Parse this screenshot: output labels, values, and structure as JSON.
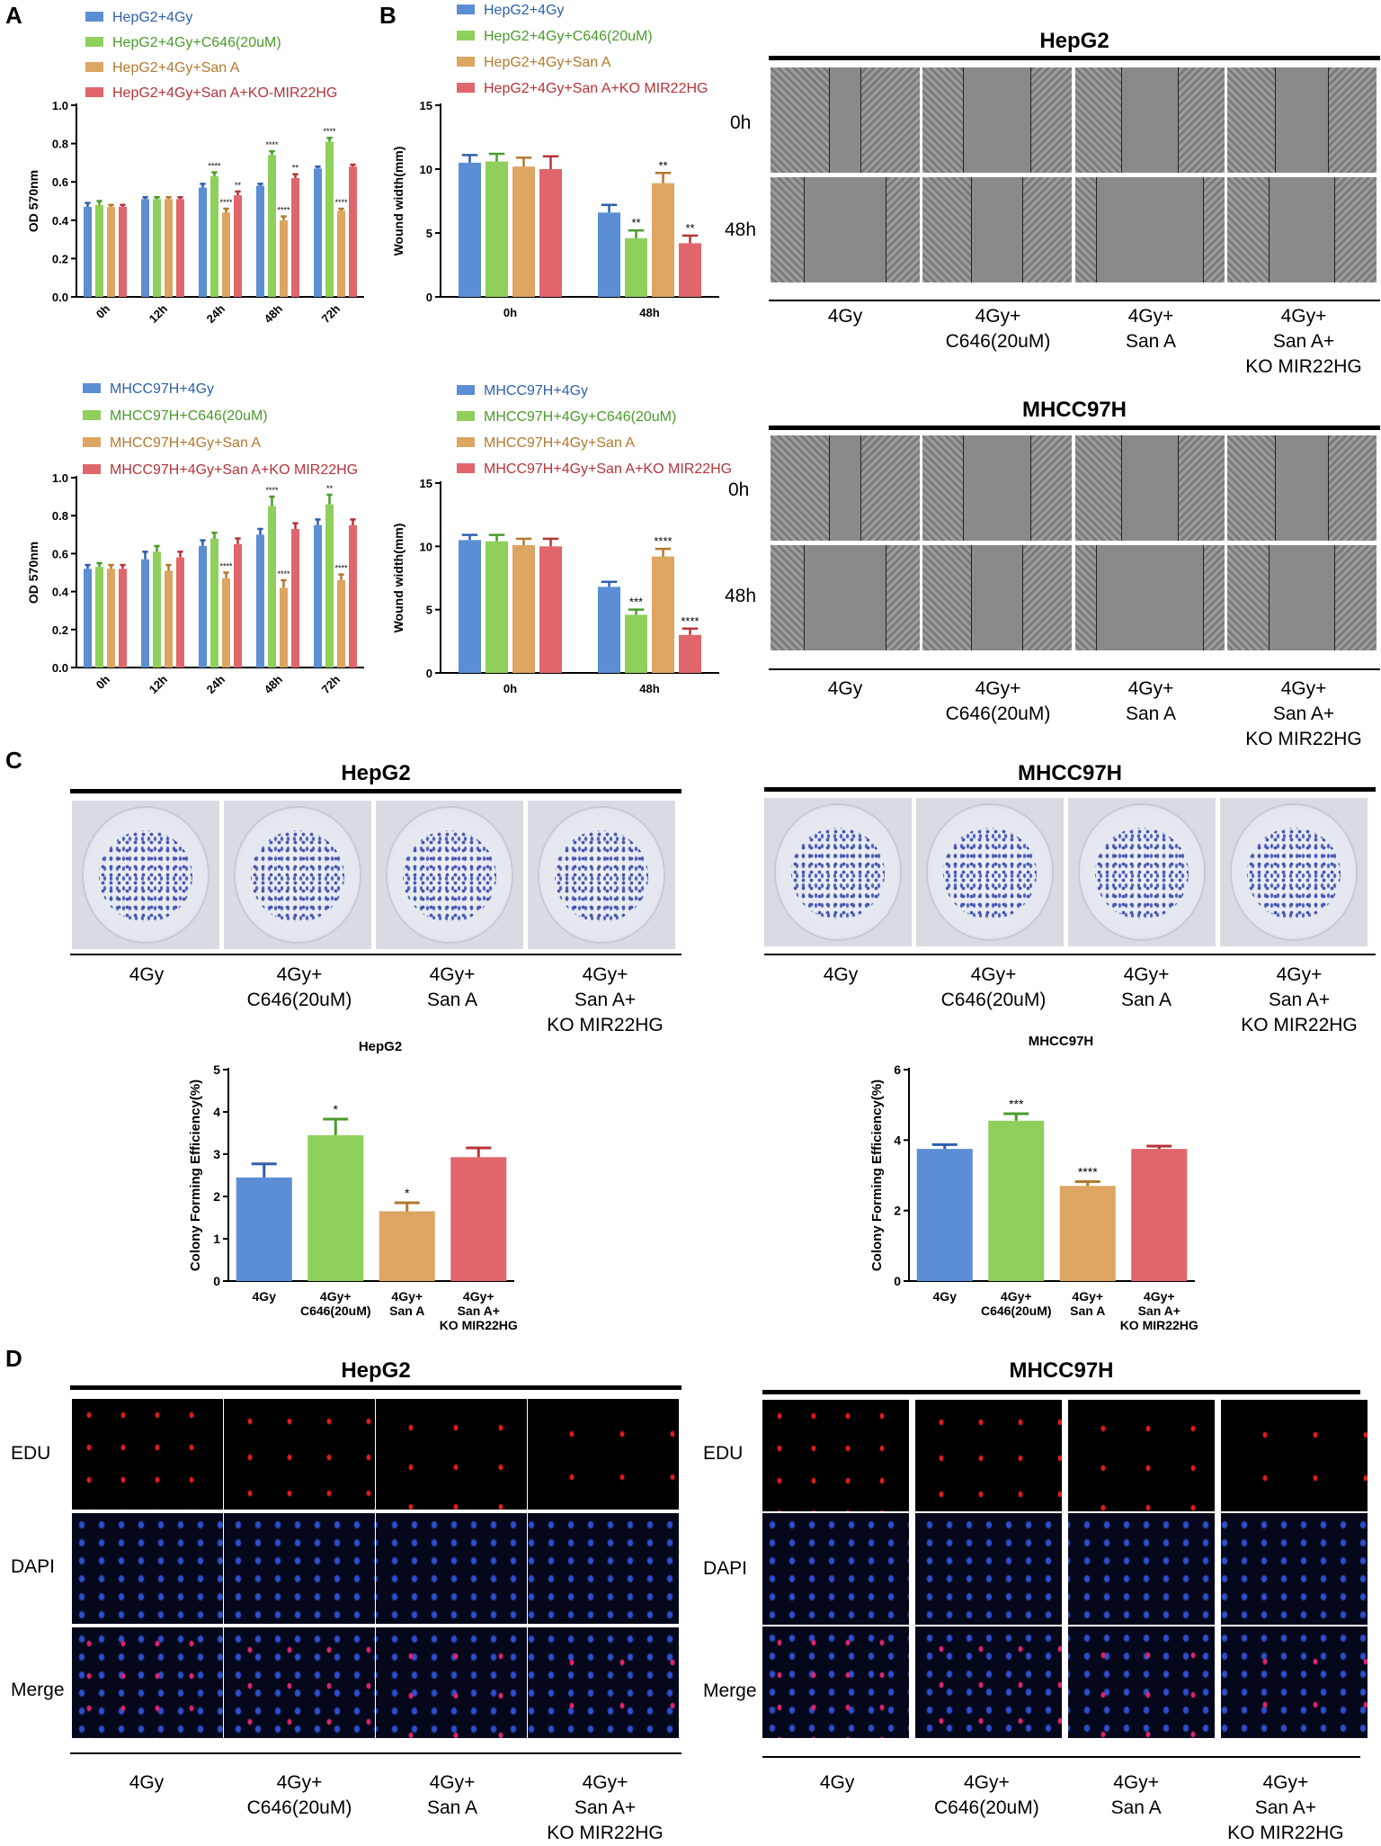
{
  "panel_labels": {
    "a": "A",
    "b": "B",
    "c": "C",
    "d": "D"
  },
  "colors": {
    "blue": "#5b8ed4",
    "green": "#8fd05c",
    "orange": "#dca561",
    "red": "#e0666b",
    "blue_err": "#2f5fad",
    "green_err": "#4a9b2c",
    "orange_err": "#b4782f",
    "red_err": "#b73339"
  },
  "icons": {
    "error-bar": "error-bar",
    "colony-plate": "colony-plate",
    "wound-image": "wound-image",
    "fluorescence-image": "fluorescence-image"
  },
  "chart_data": [
    {
      "id": "a_hepg2",
      "type": "bar",
      "ylabel": "OD 570nm",
      "ylim": [
        0,
        1.0
      ],
      "yticks": [
        "0.0",
        "0.2",
        "0.4",
        "0.6",
        "0.8",
        "1.0"
      ],
      "categories": [
        "0h",
        "12h",
        "24h",
        "48h",
        "72h"
      ],
      "series": [
        {
          "name": "HepG2+4Gy",
          "values": [
            0.47,
            0.51,
            0.57,
            0.58,
            0.67
          ],
          "err": [
            0.02,
            0.01,
            0.02,
            0.01,
            0.01
          ]
        },
        {
          "name": "HepG2+4Gy+C646(20uM)",
          "values": [
            0.48,
            0.51,
            0.63,
            0.74,
            0.81
          ],
          "err": [
            0.02,
            0.01,
            0.02,
            0.02,
            0.02
          ]
        },
        {
          "name": "HepG2+4Gy+San A",
          "values": [
            0.47,
            0.51,
            0.44,
            0.4,
            0.45
          ],
          "err": [
            0.01,
            0.01,
            0.02,
            0.02,
            0.01
          ]
        },
        {
          "name": "HepG2+4Gy+San A+KO-MIR22HG",
          "values": [
            0.47,
            0.51,
            0.53,
            0.62,
            0.68
          ],
          "err": [
            0.01,
            0.01,
            0.02,
            0.02,
            0.01
          ]
        }
      ],
      "annotations": [
        {
          "group": 2,
          "series": 1,
          "text": "****"
        },
        {
          "group": 2,
          "series": 2,
          "text": "****"
        },
        {
          "group": 2,
          "series": 3,
          "text": "**"
        },
        {
          "group": 3,
          "series": 1,
          "text": "****"
        },
        {
          "group": 3,
          "series": 2,
          "text": "****"
        },
        {
          "group": 3,
          "series": 3,
          "text": "**"
        },
        {
          "group": 4,
          "series": 1,
          "text": "****"
        },
        {
          "group": 4,
          "series": 2,
          "text": "****"
        }
      ]
    },
    {
      "id": "a_mhcc",
      "type": "bar",
      "ylabel": "OD 570nm",
      "ylim": [
        0,
        1.0
      ],
      "yticks": [
        "0.0",
        "0.2",
        "0.4",
        "0.6",
        "0.8",
        "1.0"
      ],
      "categories": [
        "0h",
        "12h",
        "24h",
        "48h",
        "72h"
      ],
      "series": [
        {
          "name": "MHCC97H+4Gy",
          "values": [
            0.52,
            0.57,
            0.64,
            0.7,
            0.75
          ],
          "err": [
            0.02,
            0.04,
            0.03,
            0.03,
            0.03
          ]
        },
        {
          "name": "MHCC97H+C646(20uM)",
          "values": [
            0.53,
            0.61,
            0.68,
            0.85,
            0.86
          ],
          "err": [
            0.02,
            0.03,
            0.03,
            0.05,
            0.05
          ]
        },
        {
          "name": "MHCC97H+4Gy+San A",
          "values": [
            0.52,
            0.51,
            0.47,
            0.42,
            0.46
          ],
          "err": [
            0.02,
            0.03,
            0.03,
            0.04,
            0.03
          ]
        },
        {
          "name": "MHCC97H+4Gy+San A+KO MIR22HG",
          "values": [
            0.52,
            0.58,
            0.65,
            0.73,
            0.75
          ],
          "err": [
            0.02,
            0.03,
            0.03,
            0.03,
            0.03
          ]
        }
      ],
      "annotations": [
        {
          "group": 2,
          "series": 2,
          "text": "****"
        },
        {
          "group": 3,
          "series": 1,
          "text": "****"
        },
        {
          "group": 3,
          "series": 2,
          "text": "****"
        },
        {
          "group": 4,
          "series": 1,
          "text": "**"
        },
        {
          "group": 4,
          "series": 2,
          "text": "****"
        }
      ]
    },
    {
      "id": "b_hepg2",
      "type": "bar",
      "ylabel": "Wound width(mm)",
      "ylim": [
        0,
        15
      ],
      "yticks": [
        "0",
        "5",
        "10",
        "15"
      ],
      "categories": [
        "0h",
        "48h"
      ],
      "series": [
        {
          "name": "HepG2+4Gy",
          "values": [
            10.5,
            6.6
          ],
          "err": [
            0.6,
            0.6
          ]
        },
        {
          "name": "HepG2+4Gy+C646(20uM)",
          "values": [
            10.6,
            4.6
          ],
          "err": [
            0.6,
            0.6
          ]
        },
        {
          "name": "HepG2+4Gy+San A",
          "values": [
            10.2,
            8.9
          ],
          "err": [
            0.7,
            0.8
          ]
        },
        {
          "name": "HepG2+4Gy+San A+KO MIR22HG",
          "values": [
            10.0,
            4.2
          ],
          "err": [
            1.0,
            0.6
          ]
        }
      ],
      "annotations": [
        {
          "group": 1,
          "series": 1,
          "text": "**"
        },
        {
          "group": 1,
          "series": 2,
          "text": "**"
        },
        {
          "group": 1,
          "series": 3,
          "text": "**"
        }
      ]
    },
    {
      "id": "b_mhcc",
      "type": "bar",
      "ylabel": "Wound width(mm)",
      "ylim": [
        0,
        15
      ],
      "yticks": [
        "0",
        "5",
        "10",
        "15"
      ],
      "categories": [
        "0h",
        "48h"
      ],
      "series": [
        {
          "name": "MHCC97H+4Gy",
          "values": [
            10.5,
            6.8
          ],
          "err": [
            0.4,
            0.4
          ]
        },
        {
          "name": "MHCC97H+4Gy+C646(20uM)",
          "values": [
            10.4,
            4.6
          ],
          "err": [
            0.5,
            0.4
          ]
        },
        {
          "name": "MHCC97H+4Gy+San A",
          "values": [
            10.1,
            9.2
          ],
          "err": [
            0.5,
            0.6
          ]
        },
        {
          "name": "MHCC97H+4Gy+San A+KO MIR22HG",
          "values": [
            10.0,
            3.0
          ],
          "err": [
            0.6,
            0.5
          ]
        }
      ],
      "annotations": [
        {
          "group": 1,
          "series": 1,
          "text": "***"
        },
        {
          "group": 1,
          "series": 2,
          "text": "****"
        },
        {
          "group": 1,
          "series": 3,
          "text": "****"
        }
      ]
    },
    {
      "id": "c_hepg2",
      "type": "bar",
      "title": "HepG2",
      "ylabel": "Colony Forming Efficiency(%)",
      "ylim": [
        0,
        5
      ],
      "yticks": [
        "0",
        "1",
        "2",
        "3",
        "4",
        "5"
      ],
      "categories": [
        "4Gy",
        "4Gy+\nC646(20uM)",
        "4Gy+\nSan A",
        "4Gy+\nSan A+\nKO MIR22HG"
      ],
      "values": [
        2.45,
        3.45,
        1.65,
        2.93
      ],
      "err": [
        0.32,
        0.38,
        0.2,
        0.22
      ],
      "annotations": [
        {
          "index": 1,
          "text": "*"
        },
        {
          "index": 2,
          "text": "*"
        }
      ]
    },
    {
      "id": "c_mhcc",
      "type": "bar",
      "title": "MHCC97H",
      "ylabel": "Colony Forming Efficiency(%)",
      "ylim": [
        0,
        6
      ],
      "yticks": [
        "0",
        "2",
        "4",
        "6"
      ],
      "categories": [
        "4Gy",
        "4Gy+\nC646(20uM)",
        "4Gy+\nSan A",
        "4Gy+\nSan A+\nKO MIR22HG"
      ],
      "values": [
        3.75,
        4.55,
        2.7,
        3.75
      ],
      "err": [
        0.12,
        0.2,
        0.12,
        0.08
      ],
      "annotations": [
        {
          "index": 1,
          "text": "***"
        },
        {
          "index": 2,
          "text": "****"
        }
      ]
    }
  ],
  "panel_b": {
    "hepg2_title": "HepG2",
    "mhcc_title": "MHCC97H",
    "row_0h": "0h",
    "row_48h": "48h",
    "groups": [
      "4Gy",
      "4Gy+\nC646(20uM)",
      "4Gy+\nSan A",
      "4Gy+\nSan A+\nKO MIR22HG"
    ]
  },
  "panel_c": {
    "hepg2_title": "HepG2",
    "mhcc_title": "MHCC97H",
    "groups": [
      "4Gy",
      "4Gy+\nC646(20uM)",
      "4Gy+\nSan A",
      "4Gy+\nSan A+\nKO MIR22HG"
    ]
  },
  "panel_d": {
    "hepg2_title": "HepG2",
    "mhcc_title": "MHCC97H",
    "rows": [
      "EDU",
      "DAPI",
      "Merge"
    ],
    "groups": [
      "4Gy",
      "4Gy+\nC646(20uM)",
      "4Gy+\nSan A",
      "4Gy+\nSan A+\nKO MIR22HG"
    ]
  }
}
